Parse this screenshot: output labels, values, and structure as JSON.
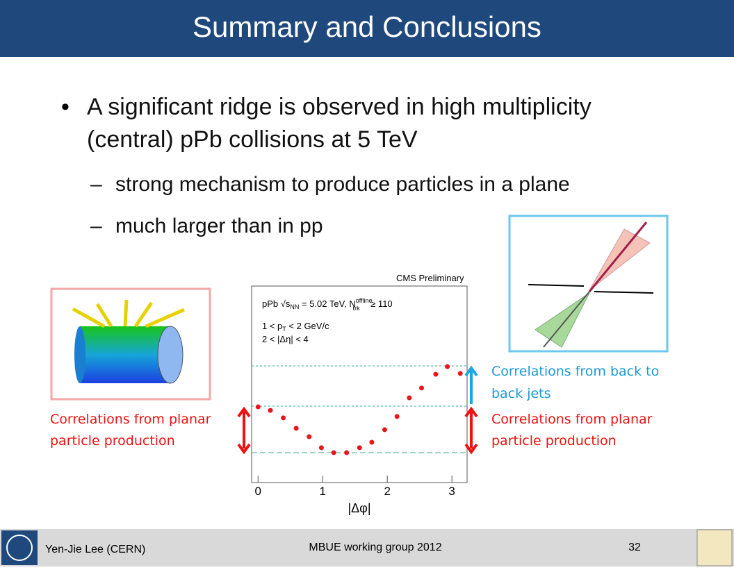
{
  "header": {
    "title": "Summary and Conclusions"
  },
  "bullets": [
    {
      "text": "A significant ridge is observed in high multiplicity (central) pPb collisions at 5 TeV",
      "lines": [
        "A significant ridge is observed in high multiplicity",
        "(central) pPb collisions at 5 TeV"
      ]
    },
    {
      "text": "strong mechanism to produce particles in a plane"
    },
    {
      "text": "much larger than in pp"
    }
  ],
  "chart_data": {
    "type": "scatter",
    "title": "CMS Preliminary",
    "legend": [
      [
        "pPb √s",
        "NN",
        " = 5.02 TeV, N",
        "offline",
        "trk",
        " ≥ 110"
      ],
      [
        "1 < p",
        "T",
        " < 2 GeV/c"
      ],
      [
        "2 < |Δη| < 4"
      ]
    ],
    "x_label": "|Δφ|",
    "x": [
      0,
      0.19,
      0.39,
      0.59,
      0.79,
      0.98,
      1.17,
      1.37,
      1.57,
      1.76,
      1.96,
      2.15,
      2.34,
      2.53,
      2.75,
      2.93,
      3.13
    ],
    "values": [
      38.5,
      36.7,
      32.9,
      27.6,
      23.3,
      17.7,
      15.2,
      15.2,
      17.7,
      20.5,
      26.9,
      33.6,
      43.1,
      48.1,
      55.1,
      59.0,
      55.5
    ],
    "color": "#e8151b",
    "xlim": [
      -0.1,
      3.235
    ],
    "ylim": [
      0,
      100
    ],
    "xticks": [
      0,
      1,
      2,
      3
    ]
  },
  "annotations": {
    "left": [
      "Correlations from planar",
      "particle production"
    ],
    "right_top": [
      "Correlations from back to",
      "back jets"
    ],
    "right_bottom": [
      "Correlations from planar",
      "particle production"
    ]
  },
  "footer": {
    "author": "Yen-Jie Lee (CERN)",
    "event": "MBUE working group 2012",
    "page": "32"
  }
}
